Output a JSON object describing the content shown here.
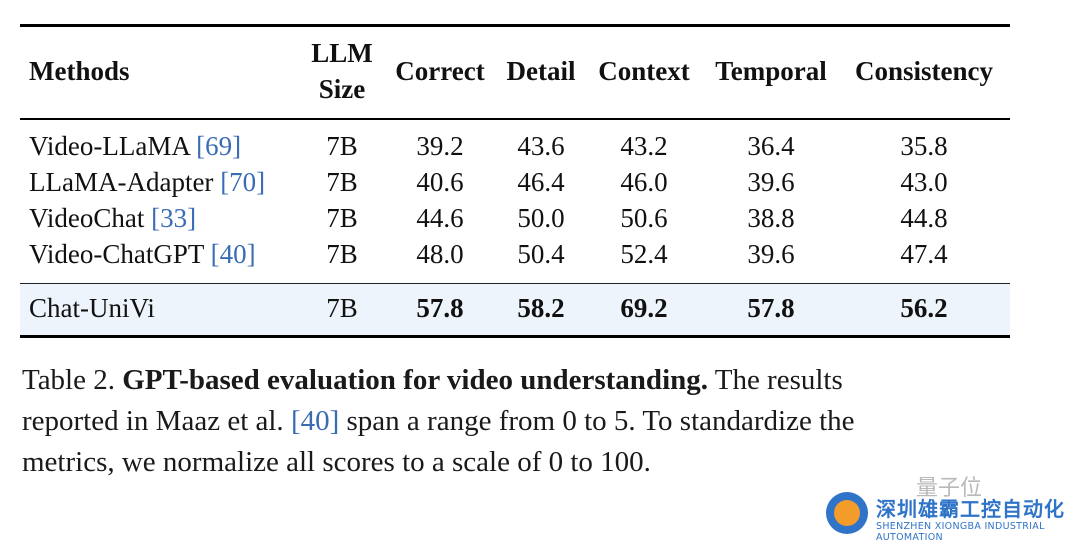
{
  "table": {
    "headers": {
      "methods": "Methods",
      "llm_size_line1": "LLM",
      "llm_size_line2": "Size",
      "correct": "Correct",
      "detail": "Detail",
      "context": "Context",
      "temporal": "Temporal",
      "consistency": "Consistency"
    },
    "rows": [
      {
        "name": "Video-LLaMA ",
        "cite": "[69]",
        "size": "7B",
        "correct": "39.2",
        "detail": "43.6",
        "context": "43.2",
        "temporal": "36.4",
        "consistency": "35.8"
      },
      {
        "name": "LLaMA-Adapter ",
        "cite": "[70]",
        "size": "7B",
        "correct": "40.6",
        "detail": "46.4",
        "context": "46.0",
        "temporal": "39.6",
        "consistency": "43.0"
      },
      {
        "name": "VideoChat ",
        "cite": "[33]",
        "size": "7B",
        "correct": "44.6",
        "detail": "50.0",
        "context": "50.6",
        "temporal": "38.8",
        "consistency": "44.8"
      },
      {
        "name": "Video-ChatGPT ",
        "cite": "[40]",
        "size": "7B",
        "correct": "48.0",
        "detail": "50.4",
        "context": "52.4",
        "temporal": "39.6",
        "consistency": "47.4"
      },
      {
        "name": "Chat-UniVi",
        "cite": "",
        "size": "7B",
        "correct": "57.8",
        "detail": "58.2",
        "context": "69.2",
        "temporal": "57.8",
        "consistency": "56.2"
      }
    ]
  },
  "caption": {
    "label": "Table 2. ",
    "title": "GPT-based evaluation for video understanding.",
    "line1_rest": " The results",
    "line2_pre": "reported in Maaz et al. ",
    "line2_cite": "[40]",
    "line2_post": " span a range from 0 to 5. To standardize the",
    "line3": "metrics, we normalize all scores to a scale of 0 to 100."
  },
  "watermark": {
    "small_text": "量子位",
    "company_cn": "深圳雄霸工控自动化",
    "company_en": "SHENZHEN XIONGBA INDUSTRIAL AUTOMATION"
  },
  "colors": {
    "citation": "#3a6cb5",
    "highlight_row": "#eef4fb",
    "watermark": "#2f74c8"
  }
}
